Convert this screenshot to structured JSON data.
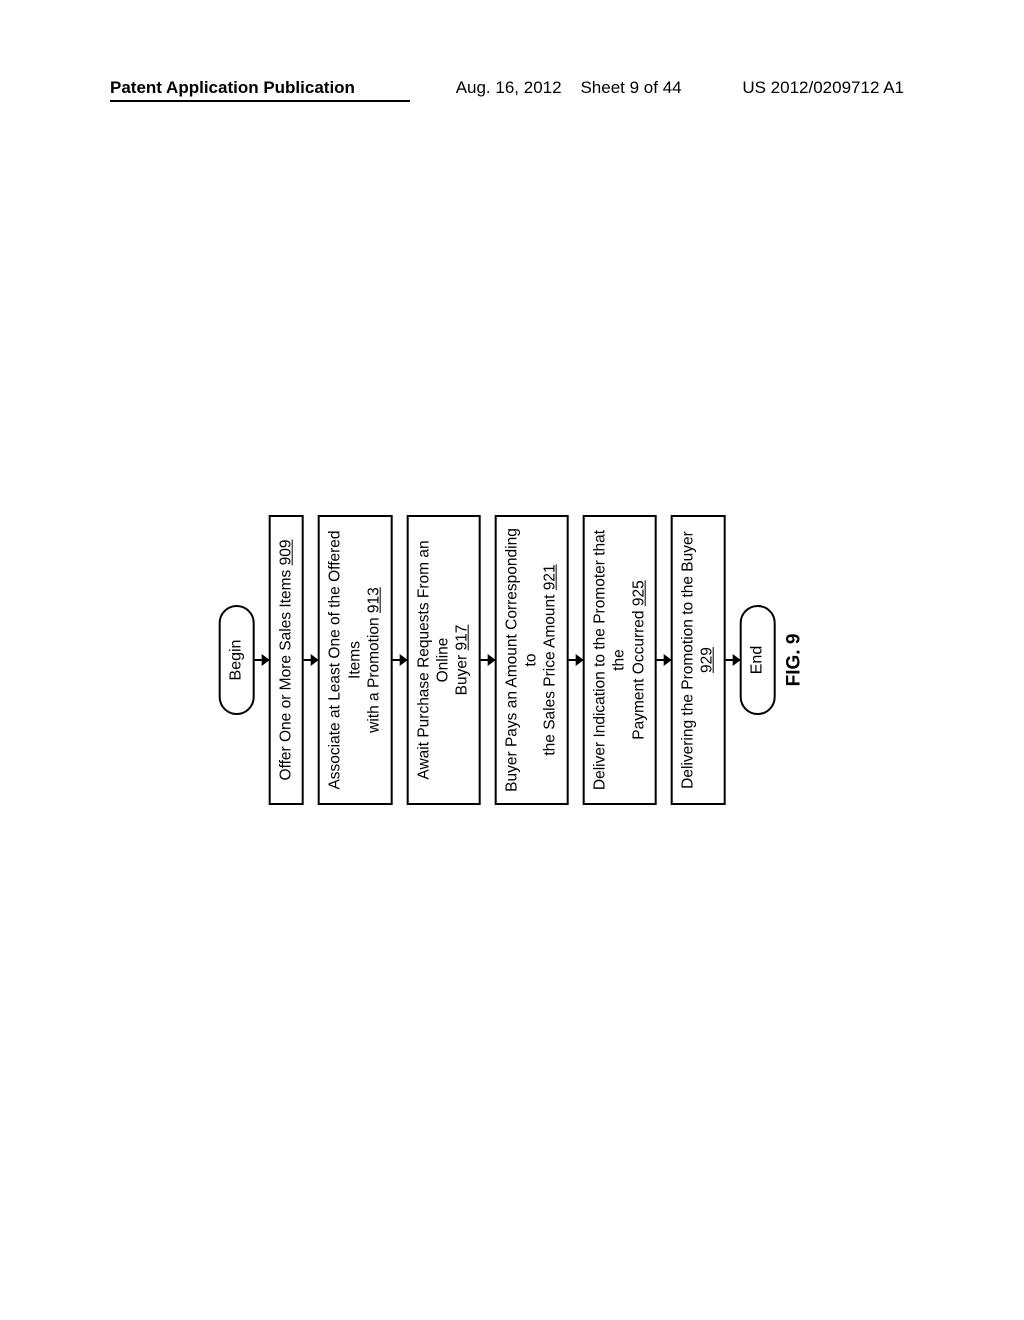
{
  "header": {
    "left": "Patent Application Publication",
    "date": "Aug. 16, 2012",
    "sheet": "Sheet 9 of 44",
    "pubno": "US 2012/0209712 A1"
  },
  "flowchart": {
    "type": "flowchart",
    "orientation": "vertical-rotated-ccw",
    "node_border_color": "#000000",
    "node_border_width": 2,
    "background_color": "#ffffff",
    "font_family": "Arial",
    "terminal_radius": 18,
    "step_width": 290,
    "begin": "Begin",
    "end": "End",
    "figure_label": "FIG. 9",
    "steps": [
      {
        "text": "Offer One or More Sales Items ",
        "ref": "909"
      },
      {
        "text_lines": [
          "Associate at Least One of the Offered",
          "Items",
          "with a Promotion "
        ],
        "ref": "913"
      },
      {
        "text_lines": [
          "Await Purchase Requests From an Online",
          "Buyer  "
        ],
        "ref": "917"
      },
      {
        "text_lines": [
          "Buyer Pays an Amount Corresponding to",
          "the Sales Price Amount "
        ],
        "ref": "921"
      },
      {
        "text_lines": [
          "Deliver Indication to the Promoter that the",
          "Payment Occurred "
        ],
        "ref": "925"
      },
      {
        "text": "Delivering the Promotion to the Buyer ",
        "ref": "929"
      }
    ]
  }
}
